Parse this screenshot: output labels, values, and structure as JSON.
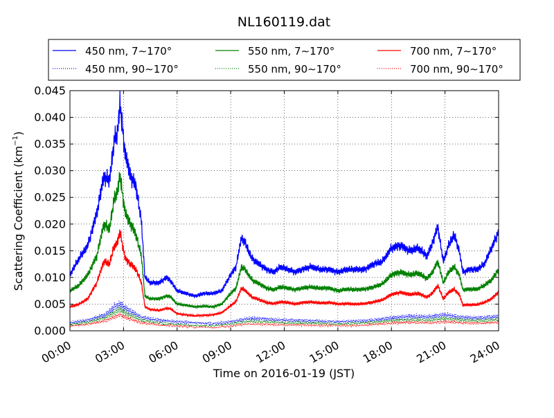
{
  "chart_data": {
    "type": "line",
    "title": "NL160119.dat",
    "xlabel": "Time on 2016-01-19 (JST)",
    "ylabel": "Scattering Coefficient (km",
    "ylabel_sup": "−1",
    "ylabel_close": ")",
    "xlim": [
      0,
      24
    ],
    "ylim": [
      0,
      0.045
    ],
    "grid": true,
    "legend_position": "top",
    "x_ticks": [
      0,
      3,
      6,
      9,
      12,
      15,
      18,
      21,
      24
    ],
    "x_tick_labels": [
      "00:00",
      "03:00",
      "06:00",
      "09:00",
      "12:00",
      "15:00",
      "18:00",
      "21:00",
      "24:00"
    ],
    "y_ticks": [
      0,
      0.005,
      0.01,
      0.015,
      0.02,
      0.025,
      0.03,
      0.035,
      0.04,
      0.045
    ],
    "y_tick_labels": [
      "0.000",
      "0.005",
      "0.010",
      "0.015",
      "0.020",
      "0.025",
      "0.030",
      "0.035",
      "0.040",
      "0.045"
    ],
    "series": [
      {
        "name": "450 nm, 7∼170°",
        "color": "#0000ff",
        "style": "solid",
        "x": [
          0,
          0.5,
          1,
          1.5,
          1.9,
          2.2,
          2.5,
          2.65,
          2.8,
          3.1,
          3.4,
          3.7,
          4.0,
          4.2,
          4.5,
          5.0,
          5.4,
          5.6,
          6.0,
          6.5,
          7.0,
          7.5,
          8.0,
          8.5,
          9.0,
          9.3,
          9.6,
          9.8,
          10.2,
          10.6,
          11.0,
          11.4,
          11.8,
          12.2,
          12.6,
          13.0,
          13.5,
          14.0,
          14.5,
          15.0,
          15.5,
          16.0,
          16.5,
          17.0,
          17.5,
          18.0,
          18.5,
          19.0,
          19.5,
          20.0,
          20.3,
          20.6,
          20.9,
          21.2,
          21.5,
          21.8,
          22.0,
          22.4,
          22.8,
          23.2,
          23.6,
          24.0
        ],
        "y": [
          0.0105,
          0.0135,
          0.016,
          0.022,
          0.029,
          0.028,
          0.036,
          0.037,
          0.0425,
          0.033,
          0.029,
          0.027,
          0.0205,
          0.01,
          0.009,
          0.009,
          0.01,
          0.0095,
          0.0075,
          0.007,
          0.0065,
          0.007,
          0.007,
          0.0075,
          0.0105,
          0.012,
          0.0175,
          0.0165,
          0.0135,
          0.0125,
          0.0115,
          0.011,
          0.012,
          0.0115,
          0.011,
          0.0115,
          0.012,
          0.0115,
          0.0115,
          0.011,
          0.0115,
          0.0115,
          0.0115,
          0.0125,
          0.013,
          0.0155,
          0.016,
          0.015,
          0.0155,
          0.014,
          0.0165,
          0.0195,
          0.013,
          0.016,
          0.018,
          0.015,
          0.011,
          0.0115,
          0.0115,
          0.0125,
          0.0155,
          0.0185
        ]
      },
      {
        "name": "450 nm, 90∼170°",
        "color": "#0000ff",
        "style": "dotted",
        "x": [
          0,
          1,
          2,
          2.5,
          2.8,
          3.2,
          4,
          5,
          6,
          7,
          8,
          9,
          10,
          11,
          12,
          13,
          14,
          15,
          16,
          17,
          18,
          19,
          20,
          21,
          22,
          23,
          24
        ],
        "y": [
          0.0015,
          0.002,
          0.003,
          0.0045,
          0.005,
          0.004,
          0.0025,
          0.002,
          0.0017,
          0.0015,
          0.0013,
          0.0017,
          0.0023,
          0.0022,
          0.002,
          0.0019,
          0.0018,
          0.0017,
          0.0018,
          0.002,
          0.0024,
          0.0027,
          0.0026,
          0.003,
          0.0025,
          0.0024,
          0.0027
        ]
      },
      {
        "name": "550 nm, 7∼170°",
        "color": "#008000",
        "style": "solid",
        "x": [
          0,
          0.5,
          1,
          1.5,
          1.9,
          2.2,
          2.5,
          2.65,
          2.8,
          3.1,
          3.4,
          3.7,
          4.0,
          4.2,
          4.5,
          5.0,
          5.4,
          5.6,
          6.0,
          6.5,
          7.0,
          7.5,
          8.0,
          8.5,
          9.0,
          9.3,
          9.6,
          9.8,
          10.2,
          10.6,
          11.0,
          11.4,
          11.8,
          12.2,
          12.6,
          13.0,
          13.5,
          14.0,
          14.5,
          15.0,
          15.5,
          16.0,
          16.5,
          17.0,
          17.5,
          18.0,
          18.5,
          19.0,
          19.5,
          20.0,
          20.3,
          20.6,
          20.9,
          21.2,
          21.5,
          21.8,
          22.0,
          22.4,
          22.8,
          23.2,
          23.6,
          24.0
        ],
        "y": [
          0.0075,
          0.0085,
          0.0105,
          0.014,
          0.02,
          0.019,
          0.025,
          0.026,
          0.029,
          0.022,
          0.02,
          0.018,
          0.014,
          0.0065,
          0.006,
          0.006,
          0.0065,
          0.0065,
          0.005,
          0.0048,
          0.0045,
          0.0046,
          0.0045,
          0.005,
          0.007,
          0.008,
          0.012,
          0.0115,
          0.0095,
          0.0088,
          0.008,
          0.0077,
          0.0082,
          0.008,
          0.0077,
          0.008,
          0.0082,
          0.008,
          0.008,
          0.0075,
          0.0078,
          0.0077,
          0.0078,
          0.0082,
          0.0088,
          0.0105,
          0.011,
          0.0105,
          0.0108,
          0.0098,
          0.011,
          0.013,
          0.009,
          0.011,
          0.012,
          0.0105,
          0.0077,
          0.0078,
          0.0078,
          0.0085,
          0.0095,
          0.0115
        ]
      },
      {
        "name": "550 nm, 90∼170°",
        "color": "#008000",
        "style": "dotted",
        "x": [
          0,
          1,
          2,
          2.5,
          2.8,
          3.2,
          4,
          5,
          6,
          7,
          8,
          9,
          10,
          11,
          12,
          13,
          14,
          15,
          16,
          17,
          18,
          19,
          20,
          21,
          22,
          23,
          24
        ],
        "y": [
          0.0012,
          0.0016,
          0.0025,
          0.0035,
          0.004,
          0.0032,
          0.002,
          0.0015,
          0.0012,
          0.001,
          0.0009,
          0.0013,
          0.0018,
          0.0017,
          0.0015,
          0.0015,
          0.0014,
          0.0013,
          0.0014,
          0.0016,
          0.0019,
          0.0021,
          0.002,
          0.0023,
          0.002,
          0.0019,
          0.0021
        ]
      },
      {
        "name": "700 nm, 7∼170°",
        "color": "#ff0000",
        "style": "solid",
        "x": [
          0,
          0.5,
          1,
          1.5,
          1.9,
          2.2,
          2.5,
          2.65,
          2.8,
          3.1,
          3.4,
          3.7,
          4.0,
          4.2,
          4.5,
          5.0,
          5.4,
          5.6,
          6.0,
          6.5,
          7.0,
          7.5,
          8.0,
          8.5,
          9.0,
          9.3,
          9.6,
          9.8,
          10.2,
          10.6,
          11.0,
          11.4,
          11.8,
          12.2,
          12.6,
          13.0,
          13.5,
          14.0,
          14.5,
          15.0,
          15.5,
          16.0,
          16.5,
          17.0,
          17.5,
          18.0,
          18.5,
          19.0,
          19.5,
          20.0,
          20.3,
          20.6,
          20.9,
          21.2,
          21.5,
          21.8,
          22.0,
          22.4,
          22.8,
          23.2,
          23.6,
          24.0
        ],
        "y": [
          0.0045,
          0.005,
          0.006,
          0.009,
          0.013,
          0.0125,
          0.016,
          0.0165,
          0.0185,
          0.0135,
          0.0125,
          0.0115,
          0.009,
          0.0045,
          0.004,
          0.0038,
          0.0042,
          0.0042,
          0.0032,
          0.003,
          0.0028,
          0.0029,
          0.003,
          0.0034,
          0.0047,
          0.0055,
          0.008,
          0.0076,
          0.0063,
          0.0058,
          0.0053,
          0.0051,
          0.0054,
          0.0053,
          0.005,
          0.0053,
          0.0054,
          0.0052,
          0.0053,
          0.005,
          0.0051,
          0.005,
          0.0051,
          0.0054,
          0.0058,
          0.0068,
          0.0072,
          0.0068,
          0.007,
          0.0063,
          0.0071,
          0.0085,
          0.006,
          0.0072,
          0.0078,
          0.0068,
          0.0048,
          0.0049,
          0.0049,
          0.0053,
          0.006,
          0.0073
        ]
      },
      {
        "name": "700 nm, 90∼170°",
        "color": "#ff0000",
        "style": "dotted",
        "x": [
          0,
          1,
          2,
          2.5,
          2.8,
          3.2,
          4,
          5,
          6,
          7,
          8,
          9,
          10,
          11,
          12,
          13,
          14,
          15,
          16,
          17,
          18,
          19,
          20,
          21,
          22,
          23,
          24
        ],
        "y": [
          0.0009,
          0.0012,
          0.0019,
          0.0026,
          0.003,
          0.0024,
          0.0015,
          0.0011,
          0.0009,
          0.0007,
          0.0006,
          0.0009,
          0.0013,
          0.0012,
          0.0011,
          0.0011,
          0.001,
          0.001,
          0.001,
          0.0012,
          0.0014,
          0.0016,
          0.0015,
          0.0017,
          0.0015,
          0.0014,
          0.0016
        ]
      }
    ]
  }
}
